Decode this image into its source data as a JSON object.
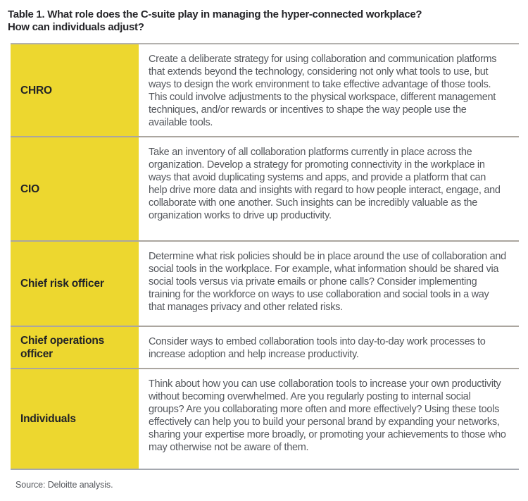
{
  "page": {
    "title_line1": "Table 1. What role does the C-suite play in managing the hyper-connected workplace?",
    "title_line2": "How can individuals adjust?",
    "source": "Source: Deloitte analysis."
  },
  "table": {
    "rows": [
      {
        "role": "CHRO",
        "description": "Create a deliberate strategy for using collaboration and communication platforms that extends beyond the technology, considering not only what tools to use, but ways to design the work environment to take effective advantage of those tools. This could involve adjustments to the physical workspace, different management techniques, and/or rewards or incentives to shape the way people use the available tools."
      },
      {
        "role": "CIO",
        "description": "Take an inventory of all collaboration platforms currently in place across the organization. Develop a strategy for promoting connectivity in the workplace in ways that avoid duplicating systems and apps, and provide a platform that can help drive more data and insights with regard to how people interact, engage, and collaborate with one another. Such insights can be incredibly valuable as the organization works to drive up productivity."
      },
      {
        "role": "Chief risk officer",
        "description": "Determine what risk policies should be in place around the use of collaboration and social tools in the workplace. For example, what information should be shared via social tools versus via private emails or phone calls? Consider implementing training for the workforce on ways to use collaboration and social tools in a way that manages privacy and other related risks."
      },
      {
        "role": "Chief operations officer",
        "description": "Consider ways to embed collaboration tools into day-to-day work processes to increase adoption and help increase productivity."
      },
      {
        "role": "Individuals",
        "description": "Think about how you can use collaboration tools to increase your own productivity without becoming overwhelmed. Are you regularly posting to internal social groups? Are you collaborating more often and more effectively? Using these tools effectively can help you to build your personal brand by expanding your networks, sharing your expertise more broadly, or promoting your achievements to those who may otherwise not be aware of them."
      }
    ]
  },
  "colors": {
    "accent-yellow": "#EDD72F",
    "separator-gray": "#ABA69F",
    "top-border-gray": "#B3B1AE",
    "bottom-border-gray": "#A4A8AF",
    "title-text": "#26262A",
    "label-text": "#212227",
    "body-text": "#54575C"
  }
}
